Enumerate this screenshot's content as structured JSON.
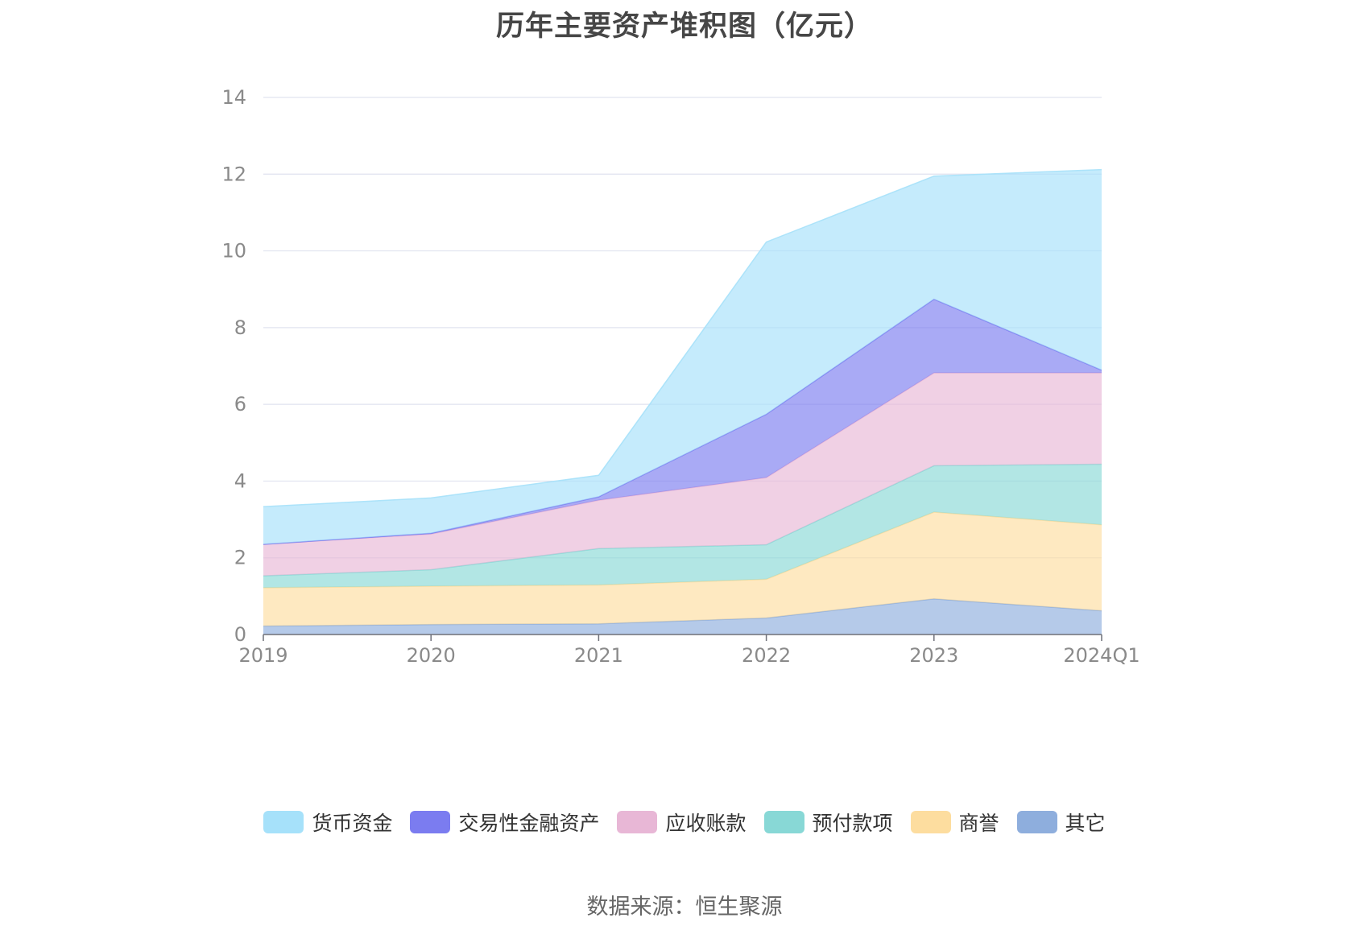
{
  "chart_data": {
    "type": "area",
    "title": "历年主要资产堆积图（亿元）",
    "stacked": true,
    "categories": [
      "2019",
      "2020",
      "2021",
      "2022",
      "2023",
      "2024Q1"
    ],
    "ylim": [
      0,
      14
    ],
    "yticks": [
      "0",
      "2",
      "4",
      "6",
      "8",
      "10",
      "12",
      "14"
    ],
    "grid": true,
    "legend_position": "bottom",
    "series": [
      {
        "name": "其它",
        "color": "#8eaedd",
        "values": [
          0.22,
          0.26,
          0.28,
          0.43,
          0.93,
          0.62
        ]
      },
      {
        "name": "商誉",
        "color": "#fddd9f",
        "values": [
          1.0,
          1.0,
          1.01,
          1.01,
          2.26,
          2.24
        ]
      },
      {
        "name": "预付款项",
        "color": "#88d8d6",
        "values": [
          0.31,
          0.43,
          0.95,
          0.9,
          1.21,
          1.58
        ]
      },
      {
        "name": "应收账款",
        "color": "#e8b7d6",
        "values": [
          0.82,
          0.93,
          1.26,
          1.75,
          2.42,
          2.38
        ]
      },
      {
        "name": "交易性金融资产",
        "color": "#7b7cf0",
        "values": [
          0.0,
          0.02,
          0.09,
          1.65,
          1.92,
          0.07
        ]
      },
      {
        "name": "货币资金",
        "color": "#a6e1fa",
        "values": [
          0.98,
          0.92,
          0.56,
          4.49,
          3.21,
          5.23
        ]
      }
    ]
  },
  "legend": [
    {
      "label": "货币资金",
      "color": "#a6e1fa"
    },
    {
      "label": "交易性金融资产",
      "color": "#7b7cf0"
    },
    {
      "label": "应收账款",
      "color": "#e8b7d6"
    },
    {
      "label": "预付款项",
      "color": "#88d8d6"
    },
    {
      "label": "商誉",
      "color": "#fddd9f"
    },
    {
      "label": "其它",
      "color": "#8eaedd"
    }
  ],
  "source_note": "数据来源：恒生聚源"
}
